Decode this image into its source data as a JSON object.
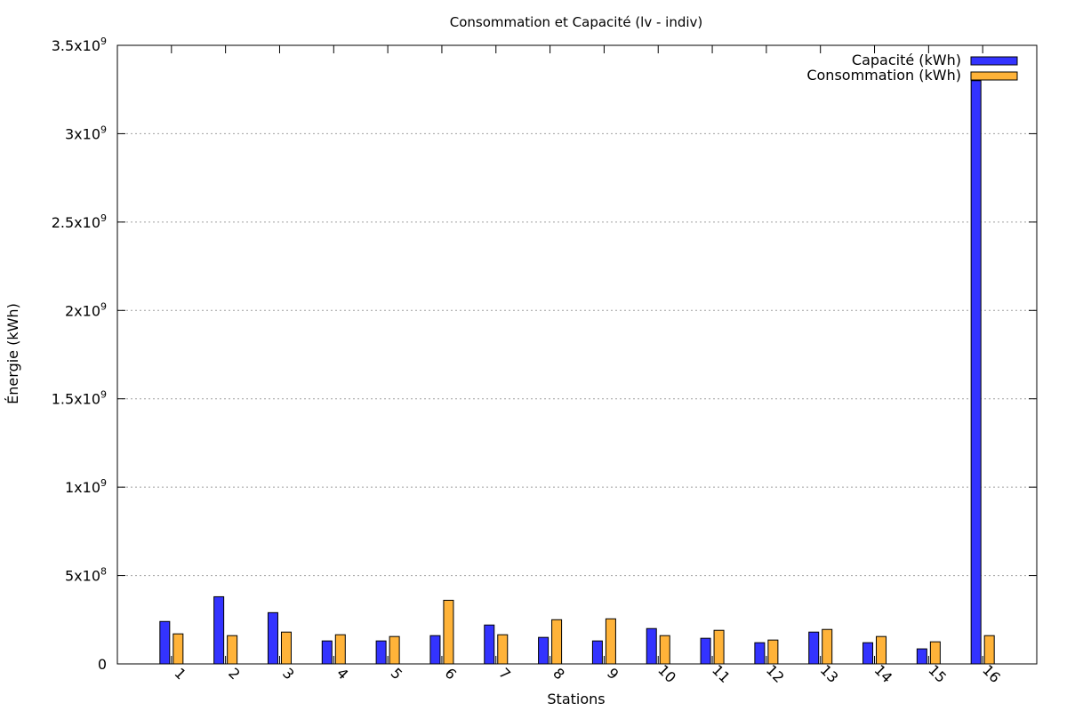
{
  "chart_data": {
    "type": "bar",
    "title": "Consommation et Capacité (lv - indiv)",
    "xlabel": "Stations",
    "ylabel": "Énergie (kWh)",
    "ylim": [
      0,
      3500000000
    ],
    "grid": "horizontal-dotted",
    "legend_position": "top-right",
    "categories": [
      "1",
      "2",
      "3",
      "4",
      "5",
      "6",
      "7",
      "8",
      "9",
      "10",
      "11",
      "12",
      "13",
      "14",
      "15",
      "16"
    ],
    "yticks": [
      {
        "value": 0,
        "mantissa": "0",
        "exp": ""
      },
      {
        "value": 500000000,
        "mantissa": "5x10",
        "exp": "8"
      },
      {
        "value": 1000000000,
        "mantissa": "1x10",
        "exp": "9"
      },
      {
        "value": 1500000000,
        "mantissa": "1.5x10",
        "exp": "9"
      },
      {
        "value": 2000000000,
        "mantissa": "2x10",
        "exp": "9"
      },
      {
        "value": 2500000000,
        "mantissa": "2.5x10",
        "exp": "9"
      },
      {
        "value": 3000000000,
        "mantissa": "3x10",
        "exp": "9"
      },
      {
        "value": 3500000000,
        "mantissa": "3.5x10",
        "exp": "9"
      }
    ],
    "series": [
      {
        "name": "Capacité (kWh)",
        "color": "#3333ff",
        "values": [
          240000000,
          380000000,
          290000000,
          130000000,
          130000000,
          160000000,
          220000000,
          150000000,
          130000000,
          200000000,
          145000000,
          120000000,
          180000000,
          120000000,
          85000000,
          3300000000
        ]
      },
      {
        "name": "Consommation (kWh)",
        "color": "#ffb339",
        "values": [
          170000000,
          160000000,
          180000000,
          165000000,
          155000000,
          360000000,
          165000000,
          250000000,
          255000000,
          160000000,
          190000000,
          135000000,
          195000000,
          155000000,
          125000000,
          160000000
        ]
      }
    ]
  }
}
